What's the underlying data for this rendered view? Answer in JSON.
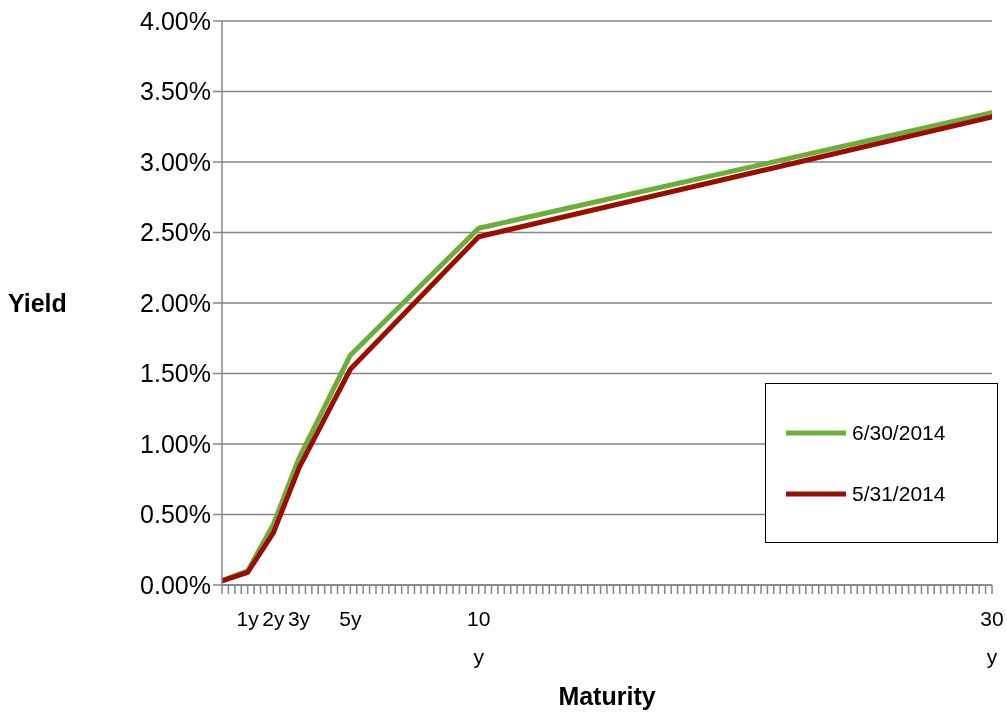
{
  "chart_data": {
    "type": "line",
    "xlabel": "Maturity",
    "ylabel": "Yield",
    "x": [
      0,
      1,
      2,
      3,
      5,
      10,
      30
    ],
    "series": [
      {
        "name": "6/30/2014",
        "color": "#6aaf3a",
        "values": [
          0.03,
          0.1,
          0.43,
          0.9,
          1.63,
          2.53,
          3.35
        ]
      },
      {
        "name": "5/31/2014",
        "color": "#9a0d00",
        "values": [
          0.03,
          0.09,
          0.37,
          0.83,
          1.53,
          2.47,
          3.32
        ]
      }
    ],
    "xlim": [
      0,
      30
    ],
    "xticks": [
      {
        "value": 0,
        "label": null
      },
      {
        "value": 0.25,
        "label": null
      },
      {
        "value": 0.5,
        "label": null
      },
      {
        "value": 0.75,
        "label": null
      },
      {
        "value": 1,
        "label": "1y"
      },
      {
        "value": 1.25,
        "label": null
      },
      {
        "value": 1.5,
        "label": null
      },
      {
        "value": 1.75,
        "label": null
      },
      {
        "value": 2,
        "label": "2y"
      },
      {
        "value": 2.25,
        "label": null
      },
      {
        "value": 2.5,
        "label": null
      },
      {
        "value": 2.75,
        "label": null
      },
      {
        "value": 3,
        "label": "3y"
      },
      {
        "value": 3.25,
        "label": null
      },
      {
        "value": 3.5,
        "label": null
      },
      {
        "value": 3.75,
        "label": null
      },
      {
        "value": 4,
        "label": null
      },
      {
        "value": 4.25,
        "label": null
      },
      {
        "value": 4.5,
        "label": null
      },
      {
        "value": 4.75,
        "label": null
      },
      {
        "value": 5,
        "label": "5y"
      },
      {
        "value": 5.25,
        "label": null
      },
      {
        "value": 5.5,
        "label": null
      },
      {
        "value": 5.75,
        "label": null
      },
      {
        "value": 6,
        "label": null
      },
      {
        "value": 6.25,
        "label": null
      },
      {
        "value": 6.5,
        "label": null
      },
      {
        "value": 6.75,
        "label": null
      },
      {
        "value": 7,
        "label": null
      },
      {
        "value": 7.25,
        "label": null
      },
      {
        "value": 7.5,
        "label": null
      },
      {
        "value": 7.75,
        "label": null
      },
      {
        "value": 8,
        "label": null
      },
      {
        "value": 8.25,
        "label": null
      },
      {
        "value": 8.5,
        "label": null
      },
      {
        "value": 8.75,
        "label": null
      },
      {
        "value": 9,
        "label": null
      },
      {
        "value": 9.25,
        "label": null
      },
      {
        "value": 9.5,
        "label": null
      },
      {
        "value": 9.75,
        "label": null
      },
      {
        "value": 10,
        "label": "10\ny"
      },
      {
        "value": 10.25,
        "label": null
      },
      {
        "value": 10.5,
        "label": null
      },
      {
        "value": 10.75,
        "label": null
      },
      {
        "value": 11,
        "label": null
      },
      {
        "value": 11.25,
        "label": null
      },
      {
        "value": 11.5,
        "label": null
      },
      {
        "value": 11.75,
        "label": null
      },
      {
        "value": 12,
        "label": null
      },
      {
        "value": 12.25,
        "label": null
      },
      {
        "value": 12.5,
        "label": null
      },
      {
        "value": 12.75,
        "label": null
      },
      {
        "value": 13,
        "label": null
      },
      {
        "value": 13.25,
        "label": null
      },
      {
        "value": 13.5,
        "label": null
      },
      {
        "value": 13.75,
        "label": null
      },
      {
        "value": 14,
        "label": null
      },
      {
        "value": 14.25,
        "label": null
      },
      {
        "value": 14.5,
        "label": null
      },
      {
        "value": 14.75,
        "label": null
      },
      {
        "value": 15,
        "label": null
      },
      {
        "value": 15.25,
        "label": null
      },
      {
        "value": 15.5,
        "label": null
      },
      {
        "value": 15.75,
        "label": null
      },
      {
        "value": 16,
        "label": null
      },
      {
        "value": 16.25,
        "label": null
      },
      {
        "value": 16.5,
        "label": null
      },
      {
        "value": 16.75,
        "label": null
      },
      {
        "value": 17,
        "label": null
      },
      {
        "value": 17.25,
        "label": null
      },
      {
        "value": 17.5,
        "label": null
      },
      {
        "value": 17.75,
        "label": null
      },
      {
        "value": 18,
        "label": null
      },
      {
        "value": 18.25,
        "label": null
      },
      {
        "value": 18.5,
        "label": null
      },
      {
        "value": 18.75,
        "label": null
      },
      {
        "value": 19,
        "label": null
      },
      {
        "value": 19.25,
        "label": null
      },
      {
        "value": 19.5,
        "label": null
      },
      {
        "value": 19.75,
        "label": null
      },
      {
        "value": 20,
        "label": null
      },
      {
        "value": 20.25,
        "label": null
      },
      {
        "value": 20.5,
        "label": null
      },
      {
        "value": 20.75,
        "label": null
      },
      {
        "value": 21,
        "label": null
      },
      {
        "value": 21.25,
        "label": null
      },
      {
        "value": 21.5,
        "label": null
      },
      {
        "value": 21.75,
        "label": null
      },
      {
        "value": 22,
        "label": null
      },
      {
        "value": 22.25,
        "label": null
      },
      {
        "value": 22.5,
        "label": null
      },
      {
        "value": 22.75,
        "label": null
      },
      {
        "value": 23,
        "label": null
      },
      {
        "value": 23.25,
        "label": null
      },
      {
        "value": 23.5,
        "label": null
      },
      {
        "value": 23.75,
        "label": null
      },
      {
        "value": 24,
        "label": null
      },
      {
        "value": 24.25,
        "label": null
      },
      {
        "value": 24.5,
        "label": null
      },
      {
        "value": 24.75,
        "label": null
      },
      {
        "value": 25,
        "label": null
      },
      {
        "value": 25.25,
        "label": null
      },
      {
        "value": 25.5,
        "label": null
      },
      {
        "value": 25.75,
        "label": null
      },
      {
        "value": 26,
        "label": null
      },
      {
        "value": 26.25,
        "label": null
      },
      {
        "value": 26.5,
        "label": null
      },
      {
        "value": 26.75,
        "label": null
      },
      {
        "value": 27,
        "label": null
      },
      {
        "value": 27.25,
        "label": null
      },
      {
        "value": 27.5,
        "label": null
      },
      {
        "value": 27.75,
        "label": null
      },
      {
        "value": 28,
        "label": null
      },
      {
        "value": 28.25,
        "label": null
      },
      {
        "value": 28.5,
        "label": null
      },
      {
        "value": 28.75,
        "label": null
      },
      {
        "value": 29,
        "label": null
      },
      {
        "value": 29.25,
        "label": null
      },
      {
        "value": 29.5,
        "label": null
      },
      {
        "value": 29.75,
        "label": null
      },
      {
        "value": 30,
        "label": "30\ny"
      }
    ],
    "ylim": [
      0,
      4
    ],
    "yticks": [
      {
        "value": 0,
        "label": "0.00%"
      },
      {
        "value": 0.5,
        "label": "0.50%"
      },
      {
        "value": 1,
        "label": "1.00%"
      },
      {
        "value": 1.5,
        "label": "1.50%"
      },
      {
        "value": 2,
        "label": "2.00%"
      },
      {
        "value": 2.5,
        "label": "2.50%"
      },
      {
        "value": 3,
        "label": "3.00%"
      },
      {
        "value": 3.5,
        "label": "3.50%"
      },
      {
        "value": 4,
        "label": "4.00%"
      }
    ],
    "grid": "y",
    "legend": "bottom right",
    "marker": "none",
    "line_style": "solid"
  }
}
